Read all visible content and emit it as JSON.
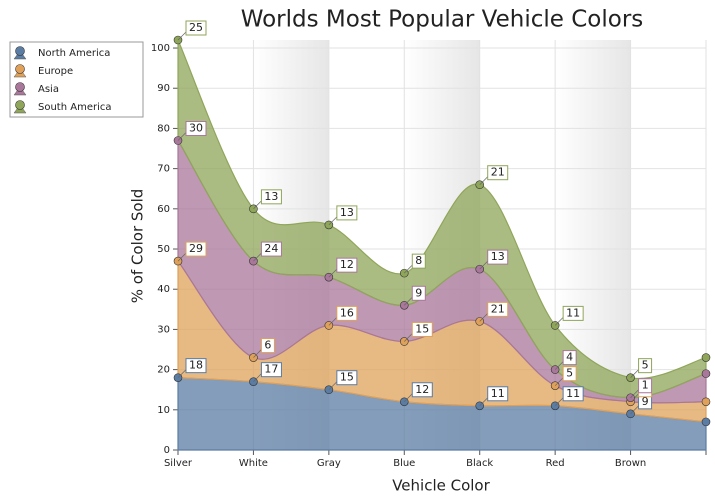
{
  "chart_data": {
    "type": "stacked-area",
    "title": "Worlds Most Popular Vehicle Colors",
    "x_label": "Vehicle Color",
    "y_label": "% of Color Sold",
    "categories": [
      "Silver",
      "White",
      "Gray",
      "Blue",
      "Black",
      "Red",
      "Brown",
      null
    ],
    "series": [
      {
        "name": "North America",
        "color": "#5b7ca3",
        "values": [
          18,
          17,
          15,
          12,
          11,
          11,
          9,
          7
        ]
      },
      {
        "name": "Europe",
        "color": "#dfa15a",
        "values": [
          29,
          6,
          16,
          15,
          21,
          5,
          3,
          5
        ]
      },
      {
        "name": "Asia",
        "color": "#a9779a",
        "values": [
          30,
          24,
          12,
          9,
          13,
          4,
          1,
          7
        ]
      },
      {
        "name": "South America",
        "color": "#8fa65a",
        "values": [
          25,
          13,
          13,
          8,
          21,
          11,
          5,
          4
        ]
      }
    ],
    "ylim": [
      0,
      102
    ],
    "yticks": [
      0,
      10,
      20,
      30,
      40,
      50,
      60,
      70,
      80,
      90,
      100
    ],
    "grid": true
  }
}
